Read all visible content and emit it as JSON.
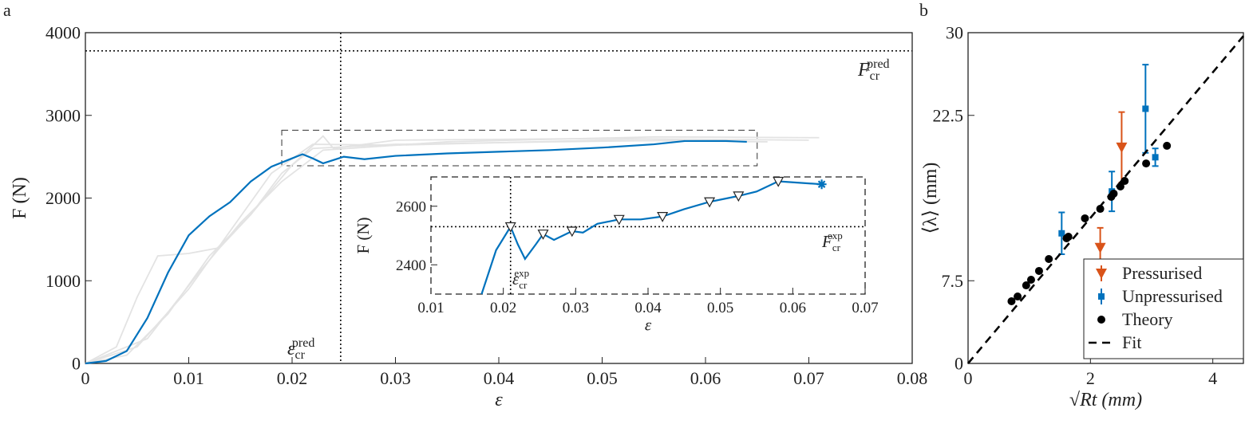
{
  "chart_data": [
    {
      "type": "line",
      "panel": "a",
      "xlabel": "ε",
      "ylabel": "F (N)",
      "xlim": [
        0,
        0.08
      ],
      "ylim": [
        0,
        4000
      ],
      "xticks": [
        0,
        0.01,
        0.02,
        0.03,
        0.04,
        0.05,
        0.06,
        0.07,
        0.08
      ],
      "yticks": [
        0,
        1000,
        2000,
        3000,
        4000
      ],
      "series": [
        {
          "color": "#e3e3e3",
          "x": [
            0,
            0.003,
            0.005,
            0.007,
            0.01,
            0.013,
            0.016,
            0.019,
            0.022,
            0.03,
            0.045,
            0.058
          ],
          "values": [
            0,
            200,
            800,
            1300,
            1330,
            1400,
            1800,
            2300,
            2600,
            2650,
            2680,
            2700
          ]
        },
        {
          "color": "#e3e3e3",
          "x": [
            0,
            0.004,
            0.008,
            0.012,
            0.016,
            0.02,
            0.023,
            0.024,
            0.03,
            0.05,
            0.07
          ],
          "values": [
            0,
            100,
            600,
            1300,
            1800,
            2400,
            2750,
            2600,
            2700,
            2720,
            2700
          ]
        },
        {
          "color": "#e3e3e3",
          "x": [
            0,
            0.005,
            0.01,
            0.014,
            0.018,
            0.022,
            0.03,
            0.05,
            0.066
          ],
          "values": [
            0,
            200,
            900,
            1600,
            2300,
            2650,
            2640,
            2700,
            2680
          ]
        },
        {
          "color": "#e3e3e3",
          "x": [
            0,
            0.006,
            0.011,
            0.015,
            0.019,
            0.023,
            0.035,
            0.055,
            0.071
          ],
          "values": [
            0,
            300,
            1100,
            1700,
            2200,
            2580,
            2680,
            2740,
            2730
          ]
        },
        {
          "color": "#0072bd",
          "x": [
            0,
            0.002,
            0.004,
            0.006,
            0.008,
            0.01,
            0.012,
            0.014,
            0.016,
            0.018,
            0.02,
            0.021,
            0.022,
            0.023,
            0.024,
            0.025,
            0.027,
            0.03,
            0.035,
            0.04,
            0.045,
            0.05,
            0.055,
            0.058,
            0.062,
            0.064
          ],
          "values": [
            0,
            30,
            150,
            550,
            1100,
            1550,
            1780,
            1950,
            2200,
            2380,
            2480,
            2530,
            2480,
            2420,
            2460,
            2500,
            2470,
            2510,
            2540,
            2560,
            2580,
            2610,
            2650,
            2690,
            2690,
            2680
          ]
        }
      ],
      "hlines": [
        3780
      ],
      "vlines": [
        0.0247
      ],
      "zoom_box": {
        "x": [
          0.019,
          0.065
        ],
        "y": [
          2390,
          2820
        ]
      },
      "annotations": [
        {
          "text": "F",
          "sub": "cr",
          "sup": "pred"
        },
        {
          "text": "ε",
          "sub": "cr",
          "sup": "pred"
        }
      ]
    },
    {
      "type": "line",
      "xlabel": "ε",
      "ylabel": "F (N)",
      "xlim": [
        0.01,
        0.07
      ],
      "ylim": [
        2300,
        2700
      ],
      "xticks": [
        0.01,
        0.02,
        0.03,
        0.04,
        0.05,
        0.06,
        0.07
      ],
      "yticks": [
        2400,
        2600
      ],
      "series": [
        {
          "color": "#0072bd",
          "x": [
            0.017,
            0.019,
            0.021,
            0.022,
            0.023,
            0.0245,
            0.0255,
            0.027,
            0.0295,
            0.031,
            0.033,
            0.036,
            0.039,
            0.042,
            0.045,
            0.0485,
            0.0525,
            0.055,
            0.058,
            0.061,
            0.064
          ],
          "values": [
            2300,
            2450,
            2530,
            2470,
            2420,
            2470,
            2505,
            2485,
            2515,
            2510,
            2540,
            2555,
            2555,
            2565,
            2590,
            2615,
            2635,
            2650,
            2685,
            2680,
            2675
          ]
        }
      ],
      "markers": {
        "x": [
          0.021,
          0.0255,
          0.0295,
          0.036,
          0.042,
          0.0485,
          0.0525,
          0.058
        ],
        "values": [
          2530,
          2505,
          2515,
          2555,
          2565,
          2615,
          2635,
          2685
        ]
      },
      "end_marker": {
        "x": 0.064,
        "value": 2675,
        "color": "#0072bd"
      },
      "hlines": [
        2530
      ],
      "vlines": [
        0.021
      ],
      "annotations": [
        {
          "text": "F",
          "sub": "cr",
          "sup": "exp"
        },
        {
          "text": "ε",
          "sub": "cr",
          "sup": "exp"
        }
      ]
    },
    {
      "type": "scatter",
      "panel": "b",
      "xlabel": "√Rt (mm)",
      "ylabel": "⟨λ⟩ (mm)",
      "xlim": [
        0,
        4.5
      ],
      "ylim": [
        0,
        30
      ],
      "xticks": [
        0,
        2,
        4
      ],
      "yticks": [
        0,
        7.5,
        22.5,
        30
      ],
      "series": [
        {
          "name": "Pressurised",
          "color": "#d95319",
          "marker": "triangle",
          "x": [
            2.16,
            2.51
          ],
          "values": [
            10.5,
            19.6
          ],
          "errors": [
            1.8,
            3.2
          ]
        },
        {
          "name": "Unpressurised",
          "color": "#0072bd",
          "marker": "square",
          "x": [
            1.53,
            2.35,
            2.9,
            3.06
          ],
          "values": [
            11.8,
            15.6,
            23.1,
            18.7
          ],
          "errors": [
            1.9,
            1.8,
            4,
            0.8
          ]
        },
        {
          "name": "Theory",
          "color": "#000000",
          "marker": "circle",
          "x": [
            0.71,
            0.81,
            0.95,
            1.03,
            1.16,
            1.32,
            1.61,
            1.64,
            1.91,
            2.16,
            2.34,
            2.38,
            2.49,
            2.56,
            2.91,
            3.25
          ],
          "values": [
            5.64,
            6.07,
            7.08,
            7.59,
            8.39,
            9.47,
            11.35,
            11.49,
            13.16,
            14.02,
            15.11,
            15.4,
            16.05,
            16.55,
            18.14,
            19.74
          ]
        },
        {
          "name": "Fit",
          "color": "#000000",
          "marker": "dashed-line",
          "x": [
            0,
            4.5
          ],
          "values": [
            0,
            29.7
          ]
        }
      ]
    }
  ]
}
